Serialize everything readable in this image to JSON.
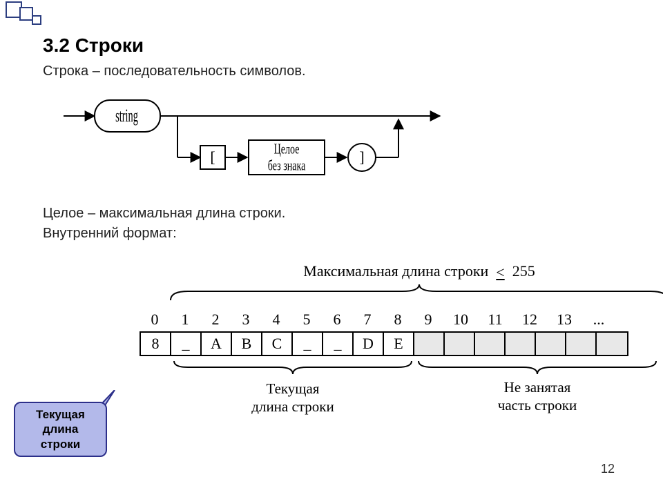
{
  "deco": {
    "border": "#2c3e80",
    "fill": "#2c3e80"
  },
  "title": "3.2 Строки",
  "para1": "Строка – последовательность символов.",
  "para2": "Целое – максимальная длина строки.",
  "para3": "Внутренний формат:",
  "syntax": {
    "node_string": "string",
    "node_bracket_open": "[",
    "node_int_l1": "Целое",
    "node_int_l2": "без знака",
    "node_bracket_close": "]"
  },
  "memory": {
    "max_label_prefix": "Максимальная длина строки",
    "max_label_suffix": "255",
    "indices": [
      "0",
      "1",
      "2",
      "3",
      "4",
      "5",
      "6",
      "7",
      "8",
      "9",
      "10",
      "11",
      "12",
      "13",
      "..."
    ],
    "cells": [
      "8",
      "_",
      "A",
      "B",
      "C",
      "_",
      "_",
      "D",
      "E",
      "",
      "",
      "",
      "",
      "",
      "",
      ""
    ],
    "filled_count": 9,
    "current_len_l1": "Текущая",
    "current_len_l2": "длина строки",
    "unused_l1": "Не занятая",
    "unused_l2": "часть строки"
  },
  "callout": {
    "l1": "Текущая",
    "l2": "длина",
    "l3": "строки",
    "bg": "#b3b9ea",
    "border": "#2c2f8a"
  },
  "page_number": "12"
}
